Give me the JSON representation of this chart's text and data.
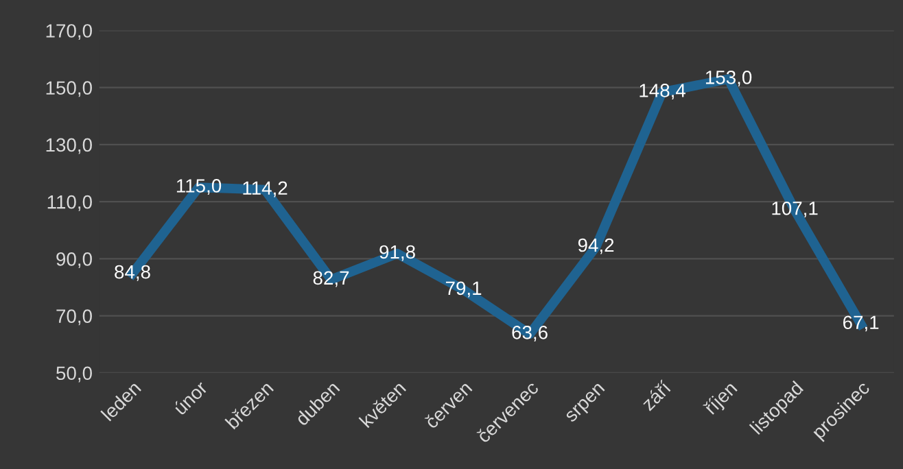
{
  "chart_data": {
    "type": "line",
    "categories": [
      "leden",
      "únor",
      "březen",
      "duben",
      "květen",
      "červen",
      "červenec",
      "srpen",
      "září",
      "říjen",
      "listopad",
      "prosinec"
    ],
    "series": [
      {
        "color": "#1f6391",
        "values": [
          84.8,
          115.0,
          114.2,
          82.7,
          91.8,
          79.1,
          63.6,
          94.2,
          148.4,
          153.0,
          107.1,
          67.1
        ],
        "value_labels": [
          "84,8",
          "115,0",
          "114,2",
          "82,7",
          "91,8",
          "79,1",
          "63,6",
          "94,2",
          "148,4",
          "153,0",
          "107,1",
          "67,1"
        ]
      }
    ],
    "ylim": [
      50,
      170
    ],
    "yticks": [
      {
        "value": 50,
        "label": "50,0"
      },
      {
        "value": 70,
        "label": "70,0"
      },
      {
        "value": 90,
        "label": "90,0"
      },
      {
        "value": 110,
        "label": "110,0"
      },
      {
        "value": 130,
        "label": "130,0"
      },
      {
        "value": 150,
        "label": "150,0"
      },
      {
        "value": 170,
        "label": "170,0"
      }
    ],
    "grid": "y",
    "marker": "none",
    "line_style": "solid",
    "legend": false
  }
}
